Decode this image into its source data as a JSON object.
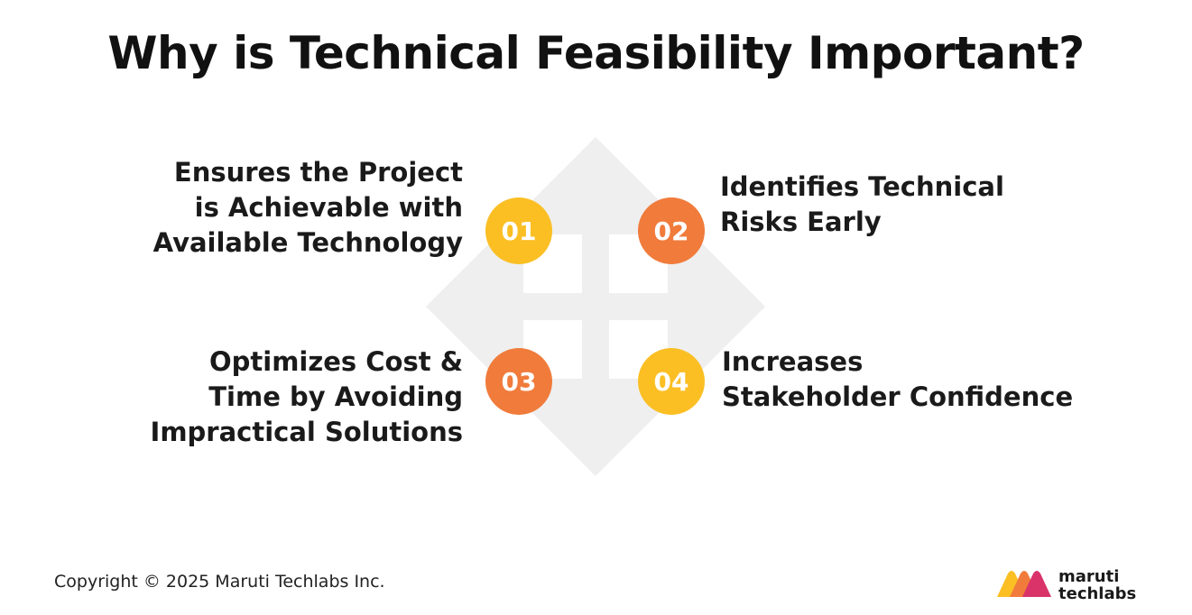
{
  "title": "Why is Technical Feasibility Important?",
  "colors": {
    "yellow": "#FBBF24",
    "orange": "#F07B3B",
    "watermark": "#EFEFEF"
  },
  "items": [
    {
      "number": "01",
      "lines": [
        "Ensures the Project",
        "is Achievable with",
        "Available Technology"
      ],
      "color": "#FBBF24"
    },
    {
      "number": "02",
      "lines": [
        "Identifies Technical",
        "Risks Early"
      ],
      "color": "#F07B3B"
    },
    {
      "number": "03",
      "lines": [
        "Optimizes Cost &",
        "Time by Avoiding",
        "Impractical Solutions"
      ],
      "color": "#F07B3B"
    },
    {
      "number": "04",
      "lines": [
        "Increases",
        "Stakeholder Confidence"
      ],
      "color": "#FBBF24"
    }
  ],
  "footer": {
    "copyright": "Copyright © 2025 Maruti Techlabs Inc."
  },
  "logo": {
    "line1": "maruti",
    "line2": "techlabs",
    "icon": "maruti-techlabs-logo-icon"
  }
}
